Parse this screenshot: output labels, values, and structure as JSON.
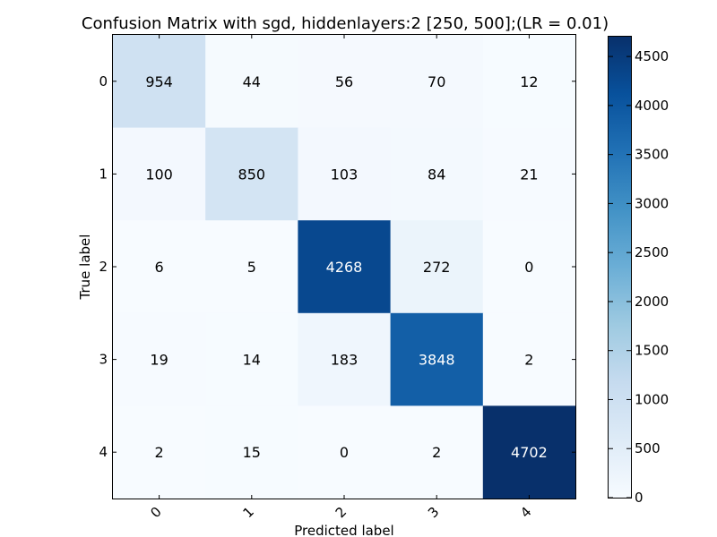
{
  "chart_data": {
    "type": "heatmap",
    "title": "Confusion Matrix with sgd, hiddenlayers:2 [250, 500];(LR = 0.01)",
    "xlabel": "Predicted label",
    "ylabel": "True label",
    "x_categories": [
      "0",
      "1",
      "2",
      "3",
      "4"
    ],
    "y_categories": [
      "0",
      "1",
      "2",
      "3",
      "4"
    ],
    "matrix": [
      [
        954,
        44,
        56,
        70,
        12
      ],
      [
        100,
        850,
        103,
        84,
        21
      ],
      [
        6,
        5,
        4268,
        272,
        0
      ],
      [
        19,
        14,
        183,
        3848,
        2
      ],
      [
        2,
        15,
        0,
        2,
        4702
      ]
    ],
    "colorbar": {
      "min": 0,
      "max": 4702,
      "ticks": [
        0,
        500,
        1000,
        1500,
        2000,
        2500,
        3000,
        3500,
        4000,
        4500
      ],
      "colormap": "Blues"
    }
  }
}
